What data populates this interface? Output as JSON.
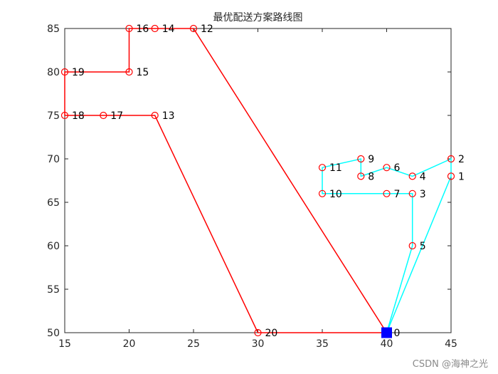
{
  "chart_data": {
    "type": "line",
    "title": "最优配送方案路线图",
    "xlabel": "",
    "ylabel": "",
    "xlim": [
      15,
      45
    ],
    "ylim": [
      50,
      85
    ],
    "xticks": [
      15,
      20,
      25,
      30,
      35,
      40,
      45
    ],
    "yticks": [
      50,
      55,
      60,
      65,
      70,
      75,
      80,
      85
    ],
    "grid": false,
    "depot": {
      "id": "0",
      "x": 40,
      "y": 50,
      "color": "#0000ff"
    },
    "nodes": [
      {
        "id": "0",
        "x": 40,
        "y": 50
      },
      {
        "id": "1",
        "x": 45,
        "y": 68
      },
      {
        "id": "2",
        "x": 45,
        "y": 70
      },
      {
        "id": "3",
        "x": 42,
        "y": 66
      },
      {
        "id": "4",
        "x": 42,
        "y": 68
      },
      {
        "id": "5",
        "x": 42,
        "y": 60
      },
      {
        "id": "6",
        "x": 40,
        "y": 69
      },
      {
        "id": "7",
        "x": 40,
        "y": 66
      },
      {
        "id": "8",
        "x": 38,
        "y": 68
      },
      {
        "id": "9",
        "x": 38,
        "y": 70
      },
      {
        "id": "10",
        "x": 35,
        "y": 66
      },
      {
        "id": "11",
        "x": 35,
        "y": 69
      },
      {
        "id": "12",
        "x": 25,
        "y": 85
      },
      {
        "id": "13",
        "x": 22,
        "y": 75
      },
      {
        "id": "14",
        "x": 22,
        "y": 85
      },
      {
        "id": "15",
        "x": 20,
        "y": 80
      },
      {
        "id": "16",
        "x": 20,
        "y": 85
      },
      {
        "id": "17",
        "x": 18,
        "y": 75
      },
      {
        "id": "18",
        "x": 15,
        "y": 75
      },
      {
        "id": "19",
        "x": 15,
        "y": 80
      },
      {
        "id": "20",
        "x": 30,
        "y": 50
      }
    ],
    "series": [
      {
        "color": "#00ffff",
        "route": [
          "0",
          "1",
          "2",
          "4",
          "6",
          "8",
          "9",
          "11",
          "10",
          "7",
          "3",
          "5",
          "0"
        ]
      },
      {
        "color": "#ff0000",
        "route": [
          "0",
          "12",
          "14",
          "16",
          "15",
          "19",
          "18",
          "17",
          "13",
          "20",
          "0"
        ]
      }
    ],
    "marker_color": "#ff0000"
  },
  "watermark": "CSDN @海神之光"
}
